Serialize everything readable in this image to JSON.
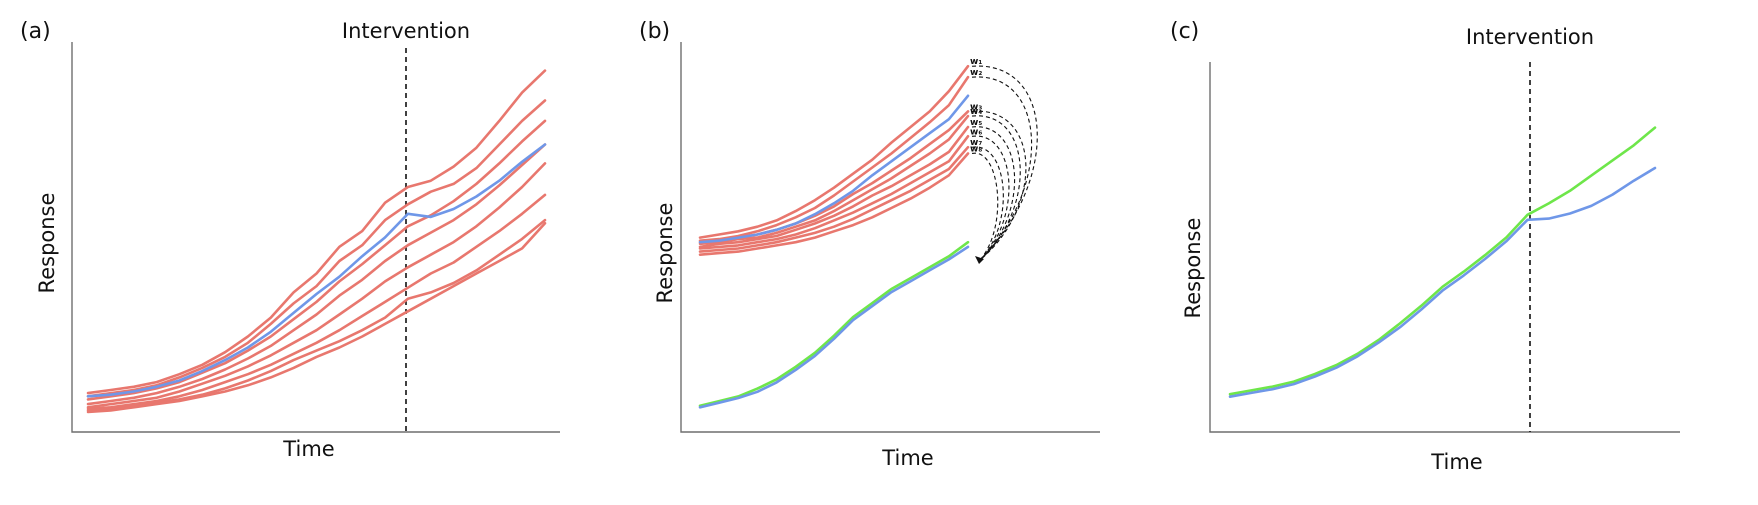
{
  "colors": {
    "control": "#e8776e",
    "treated": "#6f97e8",
    "synthetic": "#6ee64a",
    "axis": "#6f6f6f",
    "ink": "#111111"
  },
  "panels": [
    {
      "label": "(a)",
      "xlabel": "Time",
      "ylabel": "Response",
      "intervention_label": "Intervention"
    },
    {
      "label": "(b)",
      "xlabel": "Time",
      "ylabel": "Response",
      "weights": [
        "w₁",
        "w₂",
        "w₃",
        "w₄",
        "w₅",
        "w₆",
        "w₇",
        "w₈"
      ]
    },
    {
      "label": "(c)",
      "xlabel": "Time",
      "ylabel": "Response",
      "intervention_label": "Intervention"
    }
  ],
  "chart_data": [
    {
      "type": "line",
      "title": "",
      "x": [
        0,
        1,
        2,
        3,
        4,
        5,
        6,
        7,
        8,
        9,
        10,
        11,
        12,
        13,
        14,
        15,
        16,
        17,
        18,
        19,
        20
      ],
      "intervention_at": 14,
      "series": [
        {
          "role": "control",
          "values": [
            1.2,
            1.4,
            1.6,
            1.9,
            2.4,
            3.0,
            3.8,
            4.8,
            6.0,
            7.6,
            8.8,
            10.5,
            11.5,
            13.3,
            14.3,
            14.7,
            15.6,
            16.8,
            18.5,
            20.3,
            21.7
          ]
        },
        {
          "role": "control",
          "values": [
            1.0,
            1.2,
            1.4,
            1.7,
            2.2,
            2.8,
            3.5,
            4.4,
            5.6,
            6.9,
            8.0,
            9.6,
            10.6,
            12.2,
            13.2,
            14.0,
            14.5,
            15.5,
            17.0,
            18.5,
            19.8
          ]
        },
        {
          "role": "control",
          "values": [
            0.8,
            1.0,
            1.2,
            1.5,
            1.9,
            2.5,
            3.1,
            3.9,
            4.8,
            5.9,
            7.0,
            8.3,
            9.4,
            10.6,
            11.8,
            12.5,
            13.4,
            14.5,
            15.8,
            17.2,
            18.5
          ]
        },
        {
          "role": "control",
          "values": [
            0.5,
            0.7,
            0.9,
            1.2,
            1.6,
            2.1,
            2.7,
            3.4,
            4.2,
            5.2,
            6.2,
            7.4,
            8.4,
            9.6,
            10.6,
            11.4,
            12.2,
            13.2,
            14.4,
            15.7,
            17.0
          ]
        },
        {
          "role": "control",
          "values": [
            0.3,
            0.5,
            0.7,
            0.9,
            1.3,
            1.8,
            2.3,
            2.9,
            3.6,
            4.4,
            5.2,
            6.2,
            7.2,
            8.3,
            9.2,
            10.0,
            10.8,
            11.8,
            13.0,
            14.3,
            15.8
          ]
        },
        {
          "role": "control",
          "values": [
            0.2,
            0.3,
            0.5,
            0.7,
            1.0,
            1.4,
            1.9,
            2.4,
            3.0,
            3.7,
            4.4,
            5.2,
            6.1,
            7.0,
            7.9,
            8.8,
            9.5,
            10.5,
            11.5,
            12.6,
            13.8
          ]
        },
        {
          "role": "control",
          "values": [
            0.1,
            0.2,
            0.4,
            0.6,
            0.8,
            1.1,
            1.5,
            2.0,
            2.6,
            3.3,
            3.9,
            4.5,
            5.2,
            6.0,
            7.2,
            7.6,
            8.2,
            9.0,
            10.0,
            11.0,
            12.2
          ]
        },
        {
          "role": "control",
          "values": [
            0.0,
            0.1,
            0.3,
            0.5,
            0.7,
            1.0,
            1.3,
            1.7,
            2.2,
            2.8,
            3.5,
            4.1,
            4.8,
            5.6,
            6.4,
            7.2,
            8.0,
            8.8,
            9.6,
            10.4,
            12.0
          ]
        },
        {
          "role": "treated",
          "values": [
            1.0,
            1.1,
            1.3,
            1.6,
            2.0,
            2.6,
            3.3,
            4.1,
            5.1,
            6.3,
            7.5,
            8.6,
            9.9,
            11.1,
            12.6,
            12.4,
            12.9,
            13.7,
            14.7,
            15.9,
            17.0
          ]
        }
      ]
    },
    {
      "type": "line",
      "title": "",
      "x": [
        0,
        1,
        2,
        3,
        4,
        5,
        6,
        7,
        8,
        9,
        10,
        11,
        12,
        13,
        14
      ],
      "series": [
        {
          "role": "control",
          "values": [
            11.2,
            11.4,
            11.6,
            11.9,
            12.3,
            12.9,
            13.6,
            14.4,
            15.3,
            16.2,
            17.3,
            18.3,
            19.3,
            20.6,
            22.2
          ]
        },
        {
          "role": "control",
          "values": [
            11.0,
            11.1,
            11.3,
            11.6,
            12.0,
            12.5,
            13.1,
            13.9,
            14.8,
            15.7,
            16.6,
            17.6,
            18.6,
            19.7,
            21.5
          ]
        },
        {
          "role": "control",
          "values": [
            10.9,
            11.0,
            11.2,
            11.4,
            11.7,
            12.1,
            12.6,
            13.2,
            14.0,
            14.7,
            15.5,
            16.3,
            17.2,
            18.1,
            19.3
          ]
        },
        {
          "role": "control",
          "values": [
            10.8,
            10.9,
            11.1,
            11.2,
            11.5,
            11.9,
            12.3,
            12.9,
            13.6,
            14.3,
            15.0,
            15.8,
            16.6,
            17.5,
            19.0
          ]
        },
        {
          "role": "control",
          "values": [
            10.6,
            10.8,
            10.9,
            11.1,
            11.3,
            11.7,
            12.1,
            12.6,
            13.2,
            13.9,
            14.5,
            15.2,
            15.9,
            16.7,
            18.3
          ]
        },
        {
          "role": "control",
          "values": [
            10.5,
            10.6,
            10.7,
            10.9,
            11.1,
            11.4,
            11.8,
            12.3,
            12.8,
            13.4,
            14.0,
            14.7,
            15.4,
            16.1,
            17.7
          ]
        },
        {
          "role": "control",
          "values": [
            10.3,
            10.4,
            10.5,
            10.7,
            10.9,
            11.2,
            11.5,
            11.9,
            12.4,
            13.0,
            13.6,
            14.2,
            14.9,
            15.6,
            17.0
          ]
        },
        {
          "role": "control",
          "values": [
            10.1,
            10.2,
            10.3,
            10.5,
            10.7,
            10.9,
            11.2,
            11.6,
            12.0,
            12.5,
            13.1,
            13.7,
            14.4,
            15.2,
            16.6
          ]
        },
        {
          "role": "treated",
          "values": [
            10.9,
            11.0,
            11.2,
            11.4,
            11.7,
            12.1,
            12.7,
            13.4,
            14.2,
            15.2,
            16.1,
            17.0,
            17.9,
            18.8,
            20.3
          ]
        },
        {
          "role": "synthetic",
          "values": [
            0.4,
            0.7,
            1.0,
            1.5,
            2.1,
            2.9,
            3.8,
            4.9,
            6.1,
            7.0,
            7.9,
            8.6,
            9.3,
            10.0,
            10.9
          ]
        },
        {
          "role": "treated",
          "values": [
            0.3,
            0.6,
            0.9,
            1.3,
            1.9,
            2.7,
            3.6,
            4.7,
            5.9,
            6.8,
            7.7,
            8.4,
            9.1,
            9.8,
            10.6
          ]
        }
      ]
    },
    {
      "type": "line",
      "title": "",
      "x": [
        0,
        1,
        2,
        3,
        4,
        5,
        6,
        7,
        8,
        9,
        10,
        11,
        12,
        13,
        14,
        15,
        16,
        17,
        18,
        19,
        20
      ],
      "intervention_at": 14,
      "series": [
        {
          "role": "synthetic",
          "values": [
            0.3,
            0.6,
            0.9,
            1.3,
            1.9,
            2.6,
            3.5,
            4.6,
            5.9,
            7.3,
            8.8,
            10.0,
            11.3,
            12.7,
            14.5,
            15.4,
            16.4,
            17.6,
            18.8,
            20.0,
            21.4
          ]
        },
        {
          "role": "treated",
          "values": [
            0.1,
            0.4,
            0.7,
            1.1,
            1.7,
            2.4,
            3.3,
            4.4,
            5.6,
            7.0,
            8.5,
            9.7,
            11.0,
            12.4,
            14.1,
            14.2,
            14.6,
            15.2,
            16.1,
            17.2,
            18.2
          ]
        }
      ]
    }
  ]
}
